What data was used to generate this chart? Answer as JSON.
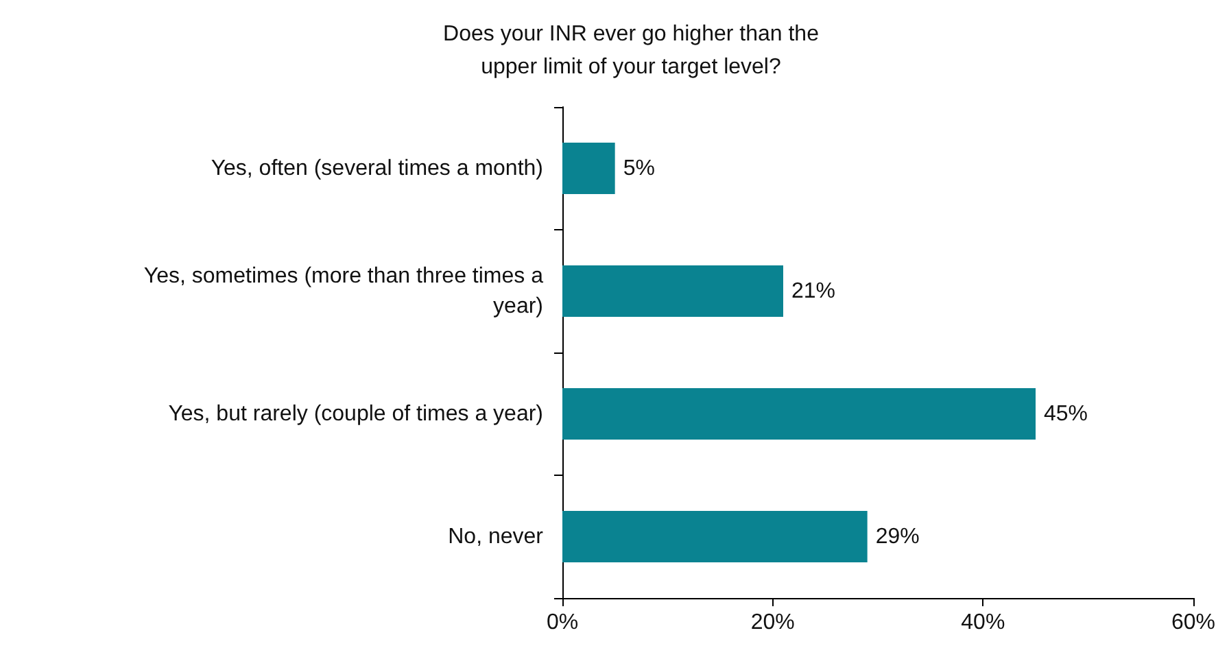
{
  "chart_data": {
    "type": "bar",
    "orientation": "horizontal",
    "title": "Does your INR ever go higher than the\nupper limit of your target level?",
    "categories": [
      "Yes, often (several times a month)",
      "Yes, sometimes (more than three times a\nyear)",
      "Yes, but rarely (couple of times a year)",
      "No, never"
    ],
    "values": [
      5,
      21,
      45,
      29
    ],
    "value_labels": [
      "5%",
      "21%",
      "45%",
      "29%"
    ],
    "color": "#0a8391",
    "xlim": [
      0,
      60
    ],
    "xticks": [
      {
        "value": 0,
        "label": "0%"
      },
      {
        "value": 20,
        "label": "20%"
      },
      {
        "value": 40,
        "label": "40%"
      },
      {
        "value": 60,
        "label": "60%"
      }
    ],
    "grid": false
  }
}
